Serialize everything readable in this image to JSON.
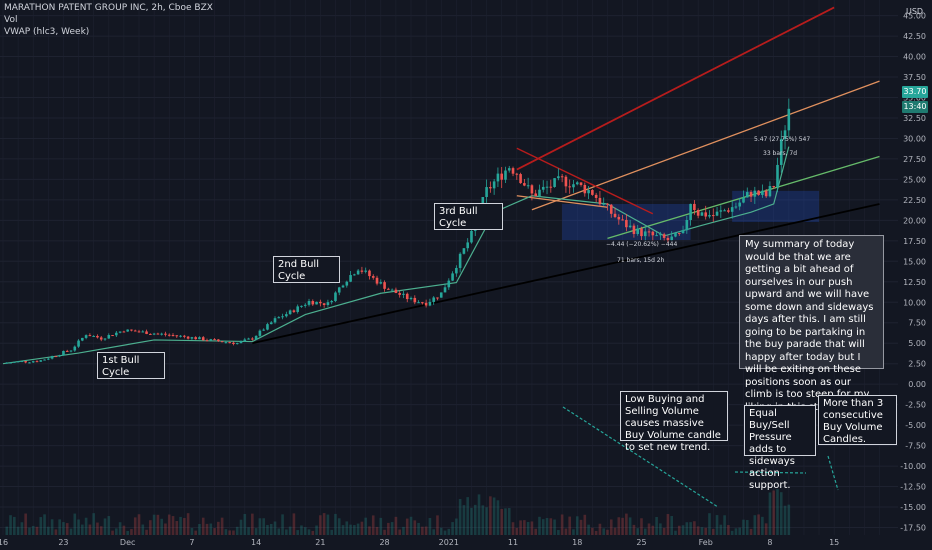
{
  "header": {
    "title": "MARATHON PATENT GROUP INC, 2h, Cboe BZX",
    "indicator1": "Vol",
    "indicator2": "VWAP (hlc3, Week)"
  },
  "colors": {
    "background": "#131722",
    "grid": "#1e2230",
    "candle_up": "#26a69a",
    "candle_down": "#ef5350",
    "vwap": "#4caf8f",
    "price_tag": "#26a69a",
    "dark_red_line": "#b71c1c",
    "orange_line": "#e0905e",
    "green_line": "#66bb6a",
    "support_line": "#000000",
    "measure_box": "#2962ff"
  },
  "price_tags": {
    "price": "33.70",
    "countdown": "13:40"
  },
  "annotations": {
    "bull1": "1st Bull\nCycle",
    "bull2": "2nd Bull\nCycle",
    "bull3": "3rd Bull\nCycle",
    "summary": "My summary of today would be that we are getting a bit ahead of ourselves in our push upward and we will have some down and sideways days after this. I am still going to be partaking in the buy parade that will happy after today but I will be exiting on these positions soon as our climb is too steep for my liking in this stage.",
    "low_volume": "Low Buying and Selling Volume causes massive Buy Volume candle to set new trend.",
    "equal_pressure": "Equal Buy/Sell Pressure adds to sideways action support.",
    "consecutive": "More than 3 consecutive Buy Volume Candles."
  },
  "measures": {
    "down_line1": "−4.44 (−20.62%) −444",
    "down_line2": "71 bars, 15d 2h",
    "up_line1": "5.47 (27.75%) 547",
    "up_line2": "33 bars, 7d"
  },
  "chart_data": {
    "type": "candlestick",
    "title": "MARATHON PATENT GROUP INC, 2h, Cboe BZX",
    "currency": "USD",
    "y_range": [
      -17.5,
      46
    ],
    "y_ticks": [
      "45.00",
      "42.50",
      "40.00",
      "37.50",
      "35.00",
      "32.50",
      "30.00",
      "27.50",
      "25.00",
      "22.50",
      "20.00",
      "17.50",
      "15.00",
      "12.50",
      "10.00",
      "7.50",
      "5.00",
      "2.50",
      "0.00",
      "-2.50",
      "-5.00",
      "-7.50",
      "-10.00",
      "-12.50",
      "-15.00",
      "-17.50"
    ],
    "y_tick_values": [
      45,
      42.5,
      40,
      37.5,
      35,
      32.5,
      30,
      27.5,
      25,
      22.5,
      20,
      17.5,
      15,
      12.5,
      10,
      7.5,
      5,
      2.5,
      0,
      -2.5,
      -5,
      -7.5,
      -10,
      -12.5,
      -15,
      -17.5
    ],
    "x_ticks": [
      "16",
      "23",
      "Dec",
      "7",
      "14",
      "21",
      "28",
      "2021",
      "11",
      "18",
      "25",
      "Feb",
      "8",
      "15"
    ],
    "x_tick_index": [
      0,
      16,
      33,
      50,
      67,
      84,
      101,
      118,
      135,
      152,
      169,
      186,
      203,
      220
    ],
    "price_path": [
      [
        0,
        2.6
      ],
      [
        10,
        2.9
      ],
      [
        18,
        4.2
      ],
      [
        22,
        6.1
      ],
      [
        26,
        5.6
      ],
      [
        32,
        6.6
      ],
      [
        40,
        6.2
      ],
      [
        48,
        5.8
      ],
      [
        56,
        5.3
      ],
      [
        62,
        5.0
      ],
      [
        66,
        5.6
      ],
      [
        72,
        7.9
      ],
      [
        76,
        8.8
      ],
      [
        81,
        10.1
      ],
      [
        86,
        9.8
      ],
      [
        90,
        12.4
      ],
      [
        94,
        14.2
      ],
      [
        98,
        12.9
      ],
      [
        102,
        11.6
      ],
      [
        108,
        10.3
      ],
      [
        112,
        9.9
      ],
      [
        116,
        11.1
      ],
      [
        120,
        14.6
      ],
      [
        124,
        18.2
      ],
      [
        128,
        23.6
      ],
      [
        131,
        25.2
      ],
      [
        134,
        26.6
      ],
      [
        136,
        25.9
      ],
      [
        140,
        23.1
      ],
      [
        144,
        24.0
      ],
      [
        148,
        24.9
      ],
      [
        152,
        24.3
      ],
      [
        156,
        23.4
      ],
      [
        160,
        21.3
      ],
      [
        164,
        19.7
      ],
      [
        168,
        18.6
      ],
      [
        172,
        18.1
      ],
      [
        176,
        17.6
      ],
      [
        180,
        18.3
      ],
      [
        182,
        22.3
      ],
      [
        184,
        20.9
      ],
      [
        188,
        20.6
      ],
      [
        194,
        21.8
      ],
      [
        198,
        23.4
      ],
      [
        202,
        23.0
      ],
      [
        204,
        24.3
      ],
      [
        206,
        29.3
      ],
      [
        208,
        33.7
      ]
    ],
    "vwap_path": [
      [
        0,
        2.5
      ],
      [
        20,
        3.8
      ],
      [
        40,
        5.4
      ],
      [
        66,
        5.2
      ],
      [
        80,
        8.5
      ],
      [
        100,
        11.1
      ],
      [
        120,
        12.4
      ],
      [
        130,
        21.0
      ],
      [
        140,
        23.0
      ],
      [
        160,
        22.0
      ],
      [
        175,
        18.1
      ],
      [
        185,
        19.4
      ],
      [
        198,
        21.0
      ],
      [
        204,
        22.0
      ],
      [
        208,
        29.0
      ]
    ],
    "trend_lines": [
      {
        "name": "support",
        "from": [
          66,
          5.0
        ],
        "to": [
          232,
          22.0
        ]
      },
      {
        "name": "green",
        "from": [
          160,
          17.8
        ],
        "to": [
          232,
          27.8
        ]
      },
      {
        "name": "orange",
        "from": [
          140,
          21.3
        ],
        "to": [
          232,
          37.0
        ]
      },
      {
        "name": "dark_red_up",
        "from": [
          136,
          26.2
        ],
        "to": [
          220,
          46.0
        ]
      },
      {
        "name": "dark_red_down",
        "from": [
          136,
          28.8
        ],
        "to": [
          172,
          20.8
        ]
      },
      {
        "name": "orange_flat",
        "from": [
          136,
          23.0
        ],
        "to": [
          160,
          21.6
        ]
      }
    ]
  }
}
